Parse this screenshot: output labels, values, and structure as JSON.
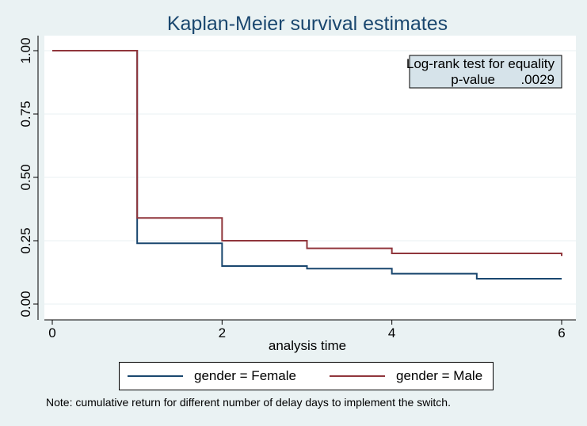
{
  "chart_data": {
    "type": "line",
    "title": "Kaplan-Meier survival estimates",
    "xlabel": "analysis time",
    "ylabel": "",
    "xlim": [
      0,
      6
    ],
    "ylim": [
      0,
      1
    ],
    "x_ticks": [
      "0",
      "2",
      "4",
      "6"
    ],
    "y_ticks": [
      "0.00",
      "0.25",
      "0.50",
      "0.75",
      "1.00"
    ],
    "grid": true,
    "step": true,
    "series": [
      {
        "name": "gender = Female",
        "color": "#1a476f",
        "x": [
          0,
          1,
          2,
          3,
          4,
          5,
          6
        ],
        "y": [
          1.0,
          0.24,
          0.15,
          0.14,
          0.12,
          0.1,
          0.1
        ]
      },
      {
        "name": "gender = Male",
        "color": "#90353b",
        "x": [
          0,
          1,
          2,
          3,
          4,
          6
        ],
        "y": [
          1.0,
          0.34,
          0.25,
          0.22,
          0.2,
          0.19
        ]
      }
    ],
    "annotation": {
      "line1": "Log-rank test for equality",
      "label": "p-value",
      "value": ".0029"
    },
    "note": "Note: cumulative return for different number of delay days to implement the switch.",
    "legend_position": "bottom"
  }
}
